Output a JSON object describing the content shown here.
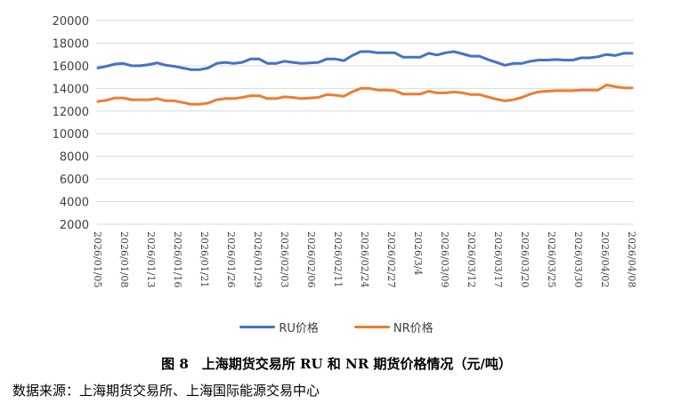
{
  "chart_data": {
    "type": "line",
    "ylim": [
      2000,
      20000
    ],
    "yticks": [
      2000,
      4000,
      6000,
      8000,
      10000,
      12000,
      14000,
      16000,
      18000,
      20000
    ],
    "grid": "horizontal",
    "legend_position": "bottom",
    "x_tick_labels": [
      "2026/01/05",
      "2026/01/08",
      "2026/01/13",
      "2026/01/16",
      "2026/01/21",
      "2026/01/26",
      "2026/01/29",
      "2026/02/03",
      "2026/02/06",
      "2026/02/11",
      "2026/02/24",
      "2026/02/27",
      "2026/3/4",
      "2026/03/09",
      "2026/03/12",
      "2026/03/17",
      "2026/03/20",
      "2026/03/25",
      "2026/03/30",
      "2026/04/02",
      "2026/04/08"
    ],
    "series": [
      {
        "name": "RU价格",
        "color": "#4472C4",
        "values": [
          15800,
          15950,
          16150,
          16200,
          16000,
          16000,
          16100,
          16250,
          16050,
          15950,
          15800,
          15650,
          15650,
          15800,
          16200,
          16300,
          16200,
          16300,
          16600,
          16600,
          16200,
          16200,
          16400,
          16300,
          16200,
          16250,
          16300,
          16600,
          16600,
          16450,
          16900,
          17250,
          17250,
          17150,
          17150,
          17150,
          16750,
          16750,
          16750,
          17100,
          16950,
          17150,
          17250,
          17050,
          16850,
          16850,
          16550,
          16300,
          16050,
          16200,
          16200,
          16400,
          16500,
          16500,
          16550,
          16500,
          16500,
          16700,
          16700,
          16800,
          17000,
          16900,
          17100,
          17100
        ]
      },
      {
        "name": "NR价格",
        "color": "#ED7D31",
        "values": [
          12850,
          12950,
          13150,
          13150,
          13000,
          13000,
          13000,
          13100,
          12900,
          12900,
          12750,
          12600,
          12600,
          12700,
          13000,
          13100,
          13100,
          13200,
          13350,
          13350,
          13100,
          13100,
          13250,
          13200,
          13100,
          13150,
          13200,
          13450,
          13400,
          13300,
          13700,
          14000,
          14000,
          13850,
          13850,
          13800,
          13500,
          13500,
          13500,
          13750,
          13600,
          13600,
          13700,
          13600,
          13450,
          13450,
          13250,
          13050,
          12900,
          13000,
          13200,
          13500,
          13700,
          13750,
          13800,
          13800,
          13800,
          13850,
          13850,
          13850,
          14300,
          14150,
          14050,
          14050
        ]
      }
    ]
  },
  "caption": "图 8　上海期货交易所 RU 和 NR 期货价格情况（元/吨）",
  "source": "数据来源：上海期货交易所、上海国际能源交易中心"
}
